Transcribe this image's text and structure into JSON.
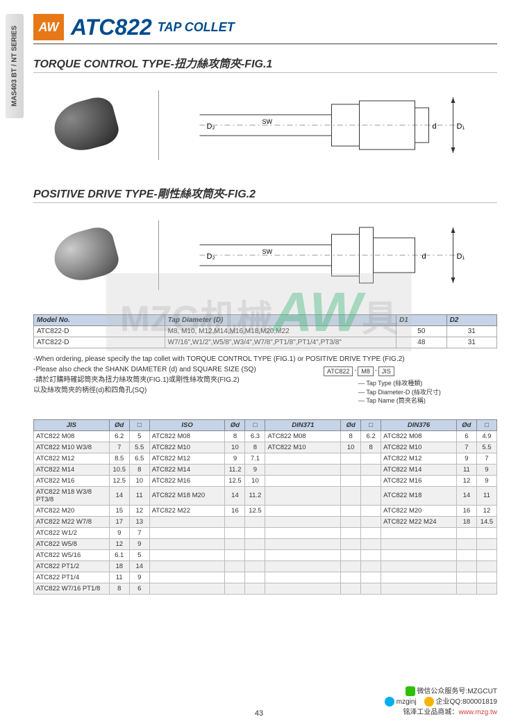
{
  "side_tab": "MAS403 BT / NT SERIES",
  "header": {
    "logo": "AW",
    "title": "ATC822",
    "subtitle": "TAP COLLET"
  },
  "section1": {
    "title": "TORQUE CONTROL TYPE-扭力絲攻筒夾-FIG.1",
    "dim_labels": {
      "d2": "D₂",
      "sw": "SW",
      "d": "d",
      "d1": "D₁"
    }
  },
  "section2": {
    "title": "POSITIVE DRIVE TYPE-剛性絲攻筒夾-FIG.2",
    "dim_labels": {
      "d2": "D₂",
      "sw": "SW",
      "d": "d",
      "d1": "D₁"
    }
  },
  "spec_table": {
    "headers": [
      "Model No.",
      "Tap Diameter (D)",
      "D1",
      "D2"
    ],
    "rows": [
      [
        "ATC822-D",
        "M8, M10, M12,M14,M16,M18,M20,M22",
        "50",
        "31"
      ],
      [
        "ATC822-D",
        "W7/16\",W1/2\",W5/8\",W3/4\",W7/8\",PT1/8\",PT1/4\",PT3/8\"",
        "48",
        "31"
      ]
    ]
  },
  "notes": {
    "line1": "-When ordering, please specify the tap collet with TORQUE CONTROL TYPE (FIG.1) or POSITIVE DRIVE TYPE (FIG.2)",
    "line2": "-Please also check the SHANK DIAMETER (d) and SQUARE SIZE (SQ)",
    "line3": "-請於訂購時確認筒夾為扭力絲攻筒夾(FIG.1)或剛性絲攻筒夾(FIG.2)",
    "line4": "  以及絲攻筒夾的柄徑(d)和四角孔(SQ)"
  },
  "code_diagram": {
    "parts": [
      "ATC822",
      "M8",
      "JIS"
    ],
    "labels": [
      "Tap Type (絲攻種類)",
      "Tap Diameter-D (絲攻尺寸)",
      "Tap Name (筒夾名稱)"
    ]
  },
  "data_table": {
    "group_headers": [
      "JIS",
      "Ød",
      "□",
      "ISO",
      "Ød",
      "□",
      "DIN371",
      "Ød",
      "□",
      "DIN376",
      "Ød",
      "□"
    ],
    "rows": [
      [
        "ATC822 M08",
        "6.2",
        "5",
        "ATC822 M08",
        "8",
        "6.3",
        "ATC822 M08",
        "8",
        "6.2",
        "ATC822 M08",
        "6",
        "4.9"
      ],
      [
        "ATC822 M10 W3/8",
        "7",
        "5.5",
        "ATC822 M10",
        "10",
        "8",
        "ATC822 M10",
        "10",
        "8",
        "ATC822 M10",
        "7",
        "5.5"
      ],
      [
        "ATC822 M12",
        "8.5",
        "6.5",
        "ATC822 M12",
        "9",
        "7.1",
        "",
        "",
        "",
        "ATC822 M12",
        "9",
        "7"
      ],
      [
        "ATC822 M14",
        "10.5",
        "8",
        "ATC822 M14",
        "11.2",
        "9",
        "",
        "",
        "",
        "ATC822 M14",
        "11",
        "9"
      ],
      [
        "ATC822 M16",
        "12.5",
        "10",
        "ATC822 M16",
        "12.5",
        "10",
        "",
        "",
        "",
        "ATC822 M16",
        "12",
        "9"
      ],
      [
        "ATC822 M18 W3/8 PT3/8",
        "14",
        "11",
        "ATC822 M18 M20",
        "14",
        "11.2",
        "",
        "",
        "",
        "ATC822 M18",
        "14",
        "11"
      ],
      [
        "ATC822 M20",
        "15",
        "12",
        "ATC822 M22",
        "16",
        "12.5",
        "",
        "",
        "",
        "ATC822 M20",
        "16",
        "12"
      ],
      [
        "ATC822 M22 W7/8",
        "17",
        "13",
        "",
        "",
        "",
        "",
        "",
        "",
        "ATC822 M22 M24",
        "18",
        "14.5"
      ],
      [
        "ATC822 W1/2",
        "9",
        "7",
        "",
        "",
        "",
        "",
        "",
        "",
        "",
        "",
        ""
      ],
      [
        "ATC822 W5/8",
        "12",
        "9",
        "",
        "",
        "",
        "",
        "",
        "",
        "",
        "",
        ""
      ],
      [
        "ATC822 W5/16",
        "6.1",
        "5",
        "",
        "",
        "",
        "",
        "",
        "",
        "",
        "",
        ""
      ],
      [
        "ATC822 PT1/2",
        "18",
        "14",
        "",
        "",
        "",
        "",
        "",
        "",
        "",
        "",
        ""
      ],
      [
        "ATC822 PT1/4",
        "11",
        "9",
        "",
        "",
        "",
        "",
        "",
        "",
        "",
        "",
        ""
      ],
      [
        "ATC822 W7/16 PT1/8",
        "8",
        "6",
        "",
        "",
        "",
        "",
        "",
        "",
        "",
        "",
        ""
      ]
    ]
  },
  "watermark": {
    "prefix": "MZG机械",
    "aw": "AW",
    "suffix": "具"
  },
  "footer": {
    "wechat_label": "微信公众服务号:",
    "wechat_id": "MZGCUT",
    "qq_label": "企业QQ:",
    "qq_id": "800001819",
    "skype_label": "mzginj",
    "site_label": "铭泽工业品商城：",
    "site_url": "www.mzg.tw"
  },
  "page_number": "43",
  "colors": {
    "header_blue": "#004b8d",
    "logo_orange": "#e67817",
    "th_bg": "#c5d4e8",
    "site_red": "#d84040"
  }
}
